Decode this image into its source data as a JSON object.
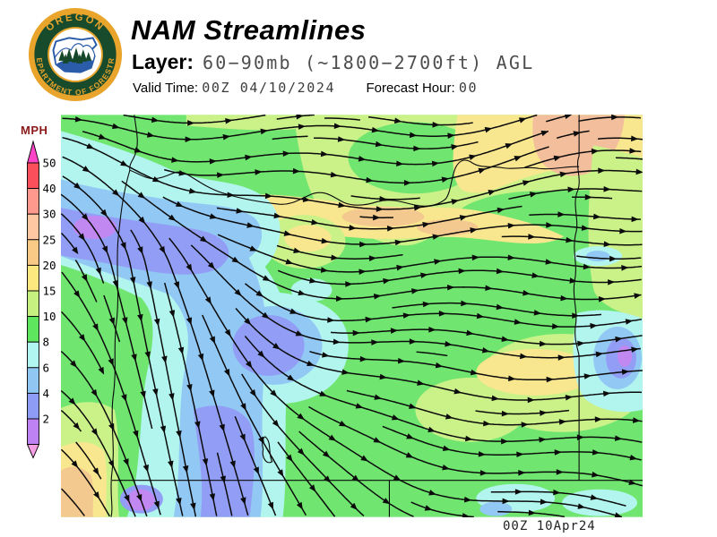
{
  "header": {
    "logo": {
      "top_text": "OREGON",
      "arc_text": "DEPARTMENT OF FORESTRY"
    },
    "title": "NAM Streamlines",
    "layer_label": "Layer:",
    "layer_value": "60−90mb (~1800−2700ft) AGL",
    "valid_time_label": "Valid Time:",
    "valid_time_value": "00Z 04/10/2024",
    "forecast_hour_label": "Forecast Hour:",
    "forecast_hour_value": "00"
  },
  "legend": {
    "units_label": "MPH",
    "arrow_top_color": "#FF44C8",
    "arrow_bottom_color": "#F49FE3",
    "bands": [
      {
        "label": "50",
        "color": "#FB4F5C"
      },
      {
        "label": "40",
        "color": "#FD998D"
      },
      {
        "label": "30",
        "color": "#FDC8A2"
      },
      {
        "label": "25",
        "color": "#F8CA86"
      },
      {
        "label": "20",
        "color": "#FCE87E"
      },
      {
        "label": "15",
        "color": "#C6F07F"
      },
      {
        "label": "10",
        "color": "#5EE65E"
      },
      {
        "label": "8",
        "color": "#B2F6F1"
      },
      {
        "label": "6",
        "color": "#8FC6F2"
      },
      {
        "label": "4",
        "color": "#8F9CF5"
      },
      {
        "label": "2",
        "color": "#BE82F2"
      }
    ]
  },
  "map": {
    "timestamp": "00Z 10Apr24",
    "stroke_color": "#0b0b0b",
    "palette": {
      "green": "#70E670",
      "ygreen": "#CBF189",
      "yellow": "#F9E78F",
      "tan": "#F3C98F",
      "peach": "#F2BE9B",
      "cyan": "#B2F5EF",
      "lblue": "#92C8F4",
      "peri": "#929EF5",
      "violet": "#C288F2"
    }
  }
}
